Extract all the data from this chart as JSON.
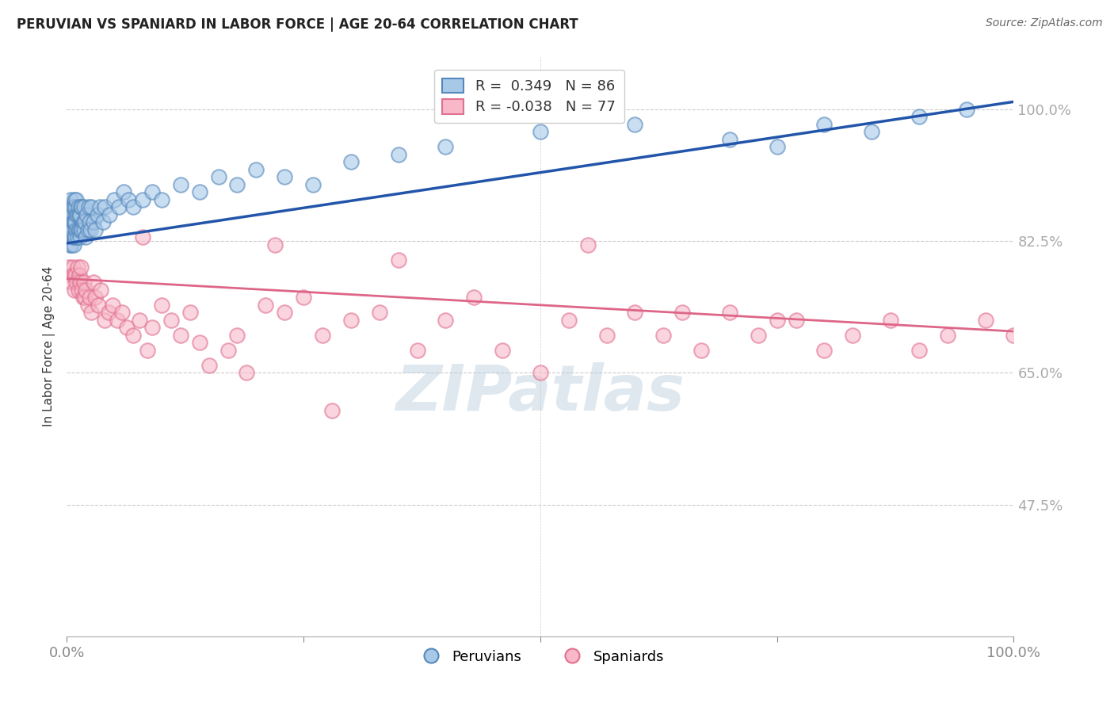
{
  "title": "PERUVIAN VS SPANIARD IN LABOR FORCE | AGE 20-64 CORRELATION CHART",
  "source": "Source: ZipAtlas.com",
  "ylabel": "In Labor Force | Age 20-64",
  "xlim": [
    0.0,
    1.0
  ],
  "ylim": [
    0.3,
    1.07
  ],
  "ytick_positions": [
    0.475,
    0.65,
    0.825,
    1.0
  ],
  "ytick_labels": [
    "47.5%",
    "65.0%",
    "82.5%",
    "100.0%"
  ],
  "peruvian_color": "#a8c8e8",
  "peruvian_edge_color": "#5588bb",
  "spaniard_color": "#f8b8c8",
  "spaniard_edge_color": "#e07090",
  "peruvian_line_color": "#2255aa",
  "spaniard_line_color": "#dd6688",
  "R_peruvian": 0.349,
  "N_peruvian": 86,
  "R_spaniard": -0.038,
  "N_spaniard": 77,
  "legend_peruvian": "Peruvians",
  "legend_spaniard": "Spaniards",
  "watermark": "ZIPatlas",
  "peruvian_trend_x0": 0.0,
  "peruvian_trend_y0": 0.822,
  "peruvian_trend_x1": 1.0,
  "peruvian_trend_y1": 1.01,
  "spaniard_trend_x0": 0.0,
  "spaniard_trend_y0": 0.775,
  "spaniard_trend_x1": 1.0,
  "spaniard_trend_y1": 0.705,
  "peruvian_x": [
    0.001,
    0.001,
    0.002,
    0.002,
    0.002,
    0.003,
    0.003,
    0.003,
    0.004,
    0.004,
    0.004,
    0.004,
    0.005,
    0.005,
    0.005,
    0.006,
    0.006,
    0.006,
    0.007,
    0.007,
    0.007,
    0.008,
    0.008,
    0.008,
    0.009,
    0.009,
    0.009,
    0.01,
    0.01,
    0.01,
    0.011,
    0.011,
    0.012,
    0.012,
    0.013,
    0.013,
    0.014,
    0.014,
    0.015,
    0.015,
    0.016,
    0.016,
    0.017,
    0.018,
    0.018,
    0.019,
    0.02,
    0.021,
    0.022,
    0.023,
    0.024,
    0.025,
    0.026,
    0.028,
    0.03,
    0.032,
    0.035,
    0.038,
    0.04,
    0.045,
    0.05,
    0.055,
    0.06,
    0.065,
    0.07,
    0.08,
    0.09,
    0.1,
    0.12,
    0.14,
    0.16,
    0.18,
    0.2,
    0.23,
    0.26,
    0.3,
    0.35,
    0.4,
    0.5,
    0.6,
    0.7,
    0.75,
    0.8,
    0.85,
    0.9,
    0.95
  ],
  "peruvian_y": [
    0.84,
    0.86,
    0.83,
    0.85,
    0.87,
    0.82,
    0.84,
    0.86,
    0.83,
    0.85,
    0.87,
    0.88,
    0.82,
    0.84,
    0.86,
    0.83,
    0.85,
    0.87,
    0.82,
    0.85,
    0.87,
    0.83,
    0.85,
    0.88,
    0.83,
    0.85,
    0.87,
    0.84,
    0.86,
    0.88,
    0.83,
    0.86,
    0.84,
    0.87,
    0.84,
    0.86,
    0.83,
    0.86,
    0.84,
    0.87,
    0.84,
    0.87,
    0.85,
    0.84,
    0.87,
    0.85,
    0.83,
    0.86,
    0.84,
    0.87,
    0.85,
    0.84,
    0.87,
    0.85,
    0.84,
    0.86,
    0.87,
    0.85,
    0.87,
    0.86,
    0.88,
    0.87,
    0.89,
    0.88,
    0.87,
    0.88,
    0.89,
    0.88,
    0.9,
    0.89,
    0.91,
    0.9,
    0.92,
    0.91,
    0.9,
    0.93,
    0.94,
    0.95,
    0.97,
    0.98,
    0.96,
    0.95,
    0.98,
    0.97,
    0.99,
    1.0
  ],
  "spaniard_x": [
    0.002,
    0.004,
    0.005,
    0.006,
    0.007,
    0.008,
    0.009,
    0.01,
    0.011,
    0.012,
    0.013,
    0.014,
    0.015,
    0.016,
    0.017,
    0.018,
    0.019,
    0.02,
    0.022,
    0.024,
    0.026,
    0.028,
    0.03,
    0.033,
    0.036,
    0.04,
    0.044,
    0.048,
    0.053,
    0.058,
    0.063,
    0.07,
    0.077,
    0.085,
    0.09,
    0.1,
    0.11,
    0.12,
    0.13,
    0.14,
    0.15,
    0.17,
    0.19,
    0.21,
    0.23,
    0.25,
    0.27,
    0.3,
    0.33,
    0.37,
    0.4,
    0.43,
    0.46,
    0.5,
    0.53,
    0.57,
    0.6,
    0.63,
    0.67,
    0.7,
    0.73,
    0.77,
    0.8,
    0.83,
    0.87,
    0.9,
    0.93,
    0.97,
    1.0,
    0.35,
    0.55,
    0.65,
    0.75,
    0.28,
    0.22,
    0.18,
    0.08
  ],
  "spaniard_y": [
    0.79,
    0.78,
    0.77,
    0.79,
    0.78,
    0.76,
    0.78,
    0.77,
    0.79,
    0.76,
    0.78,
    0.77,
    0.79,
    0.76,
    0.75,
    0.77,
    0.75,
    0.76,
    0.74,
    0.75,
    0.73,
    0.77,
    0.75,
    0.74,
    0.76,
    0.72,
    0.73,
    0.74,
    0.72,
    0.73,
    0.71,
    0.7,
    0.72,
    0.68,
    0.71,
    0.74,
    0.72,
    0.7,
    0.73,
    0.69,
    0.66,
    0.68,
    0.65,
    0.74,
    0.73,
    0.75,
    0.7,
    0.72,
    0.73,
    0.68,
    0.72,
    0.75,
    0.68,
    0.65,
    0.72,
    0.7,
    0.73,
    0.7,
    0.68,
    0.73,
    0.7,
    0.72,
    0.68,
    0.7,
    0.72,
    0.68,
    0.7,
    0.72,
    0.7,
    0.8,
    0.82,
    0.73,
    0.72,
    0.6,
    0.82,
    0.7,
    0.83
  ]
}
